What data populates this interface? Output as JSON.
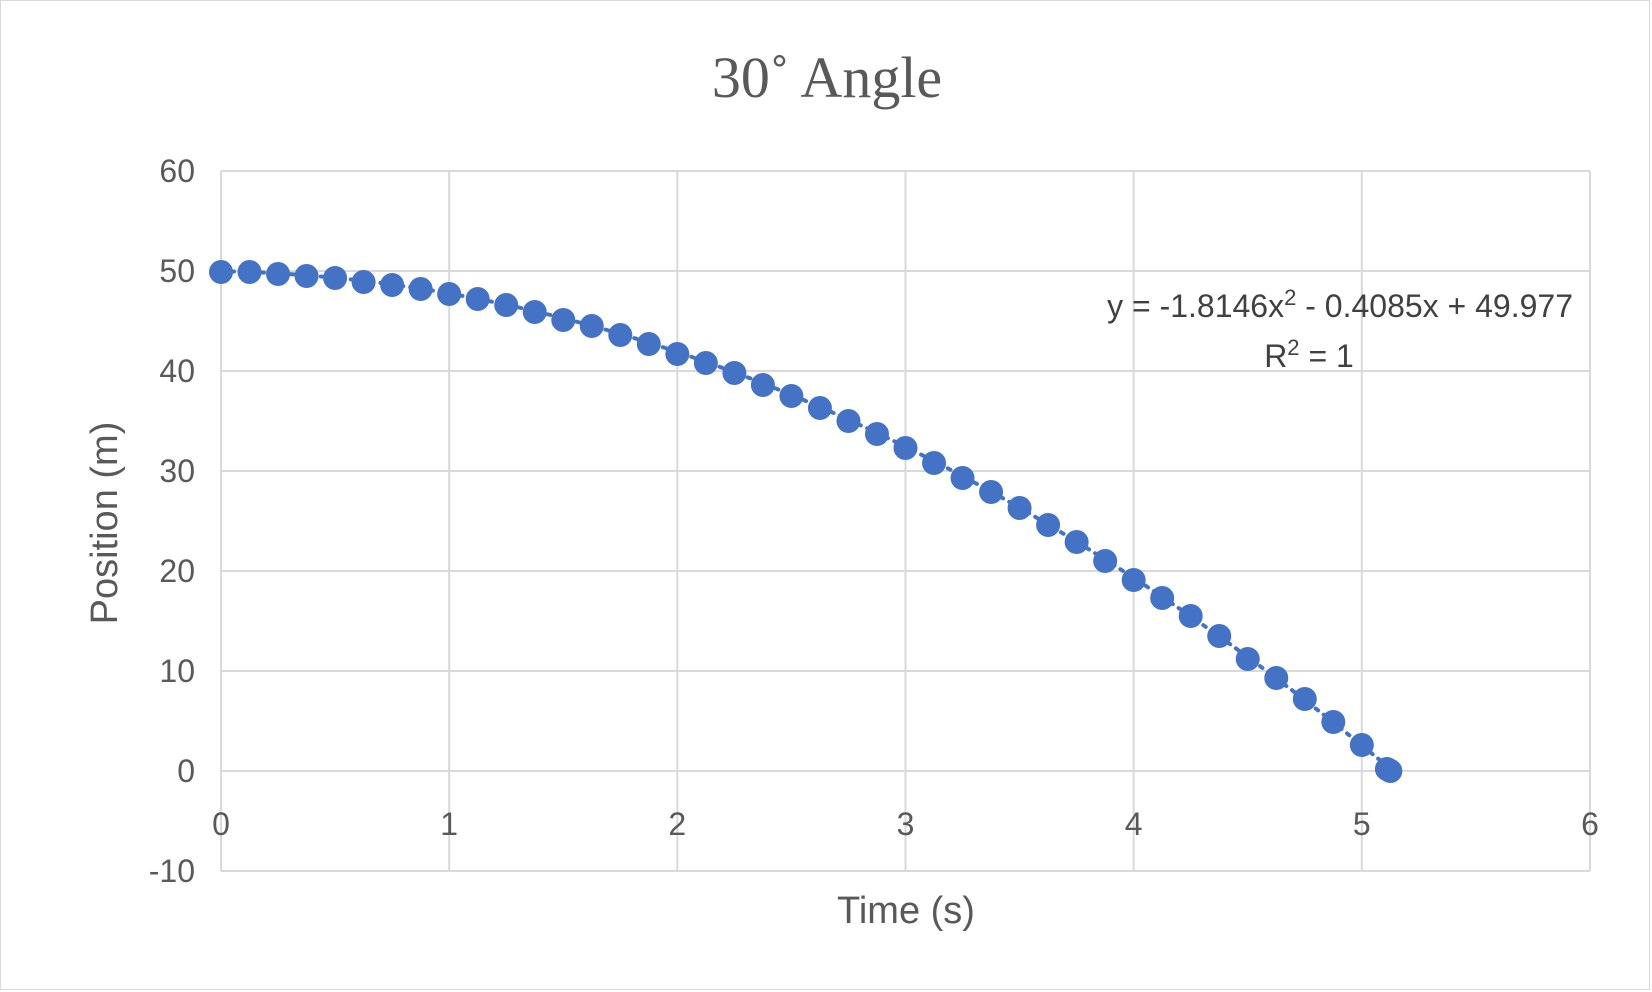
{
  "chart_data": {
    "type": "scatter",
    "title": "30˚ Angle",
    "xlabel": "Time (s)",
    "ylabel": "Position (m)",
    "xlim": [
      0,
      6
    ],
    "ylim": [
      -10,
      60
    ],
    "xticks": [
      0,
      1,
      2,
      3,
      4,
      5,
      6
    ],
    "yticks": [
      -10,
      0,
      10,
      20,
      30,
      40,
      50,
      60
    ],
    "grid": true,
    "legend": "none",
    "marker_color": "#4472C4",
    "trendline": {
      "type": "polynomial",
      "order": 2,
      "coefficients": [
        -1.8146,
        -0.4085,
        49.977
      ],
      "equation_prefix": "y = -1.8146x",
      "equation_sup": "2",
      "equation_suffix": " - 0.4085x + 49.977",
      "r2_prefix": "R",
      "r2_sup": "2",
      "r2_suffix": " = 1",
      "style": "dotted",
      "color": "#4472C4"
    },
    "series": [
      {
        "x": [
          0,
          0.125,
          0.25,
          0.375,
          0.5,
          0.625,
          0.75,
          0.875,
          1.0,
          1.125,
          1.25,
          1.375,
          1.5,
          1.625,
          1.75,
          1.875,
          2.0,
          2.125,
          2.25,
          2.375,
          2.5,
          2.625,
          2.75,
          2.875,
          3.0,
          3.125,
          3.25,
          3.375,
          3.5,
          3.625,
          3.75,
          3.875,
          4.0,
          4.125,
          4.25,
          4.375,
          4.5,
          4.625,
          4.75,
          4.875,
          5.0,
          5.11,
          5.125
        ],
        "y": [
          49.9,
          49.9,
          49.7,
          49.5,
          49.3,
          48.9,
          48.6,
          48.2,
          47.7,
          47.2,
          46.6,
          45.9,
          45.1,
          44.5,
          43.6,
          42.7,
          41.7,
          40.8,
          39.8,
          38.6,
          37.5,
          36.3,
          35.0,
          33.7,
          32.3,
          30.8,
          29.3,
          27.9,
          26.3,
          24.6,
          22.9,
          21.0,
          19.1,
          17.3,
          15.5,
          13.5,
          11.2,
          9.3,
          7.2,
          4.9,
          2.6,
          0.2,
          0.0
        ]
      }
    ]
  }
}
